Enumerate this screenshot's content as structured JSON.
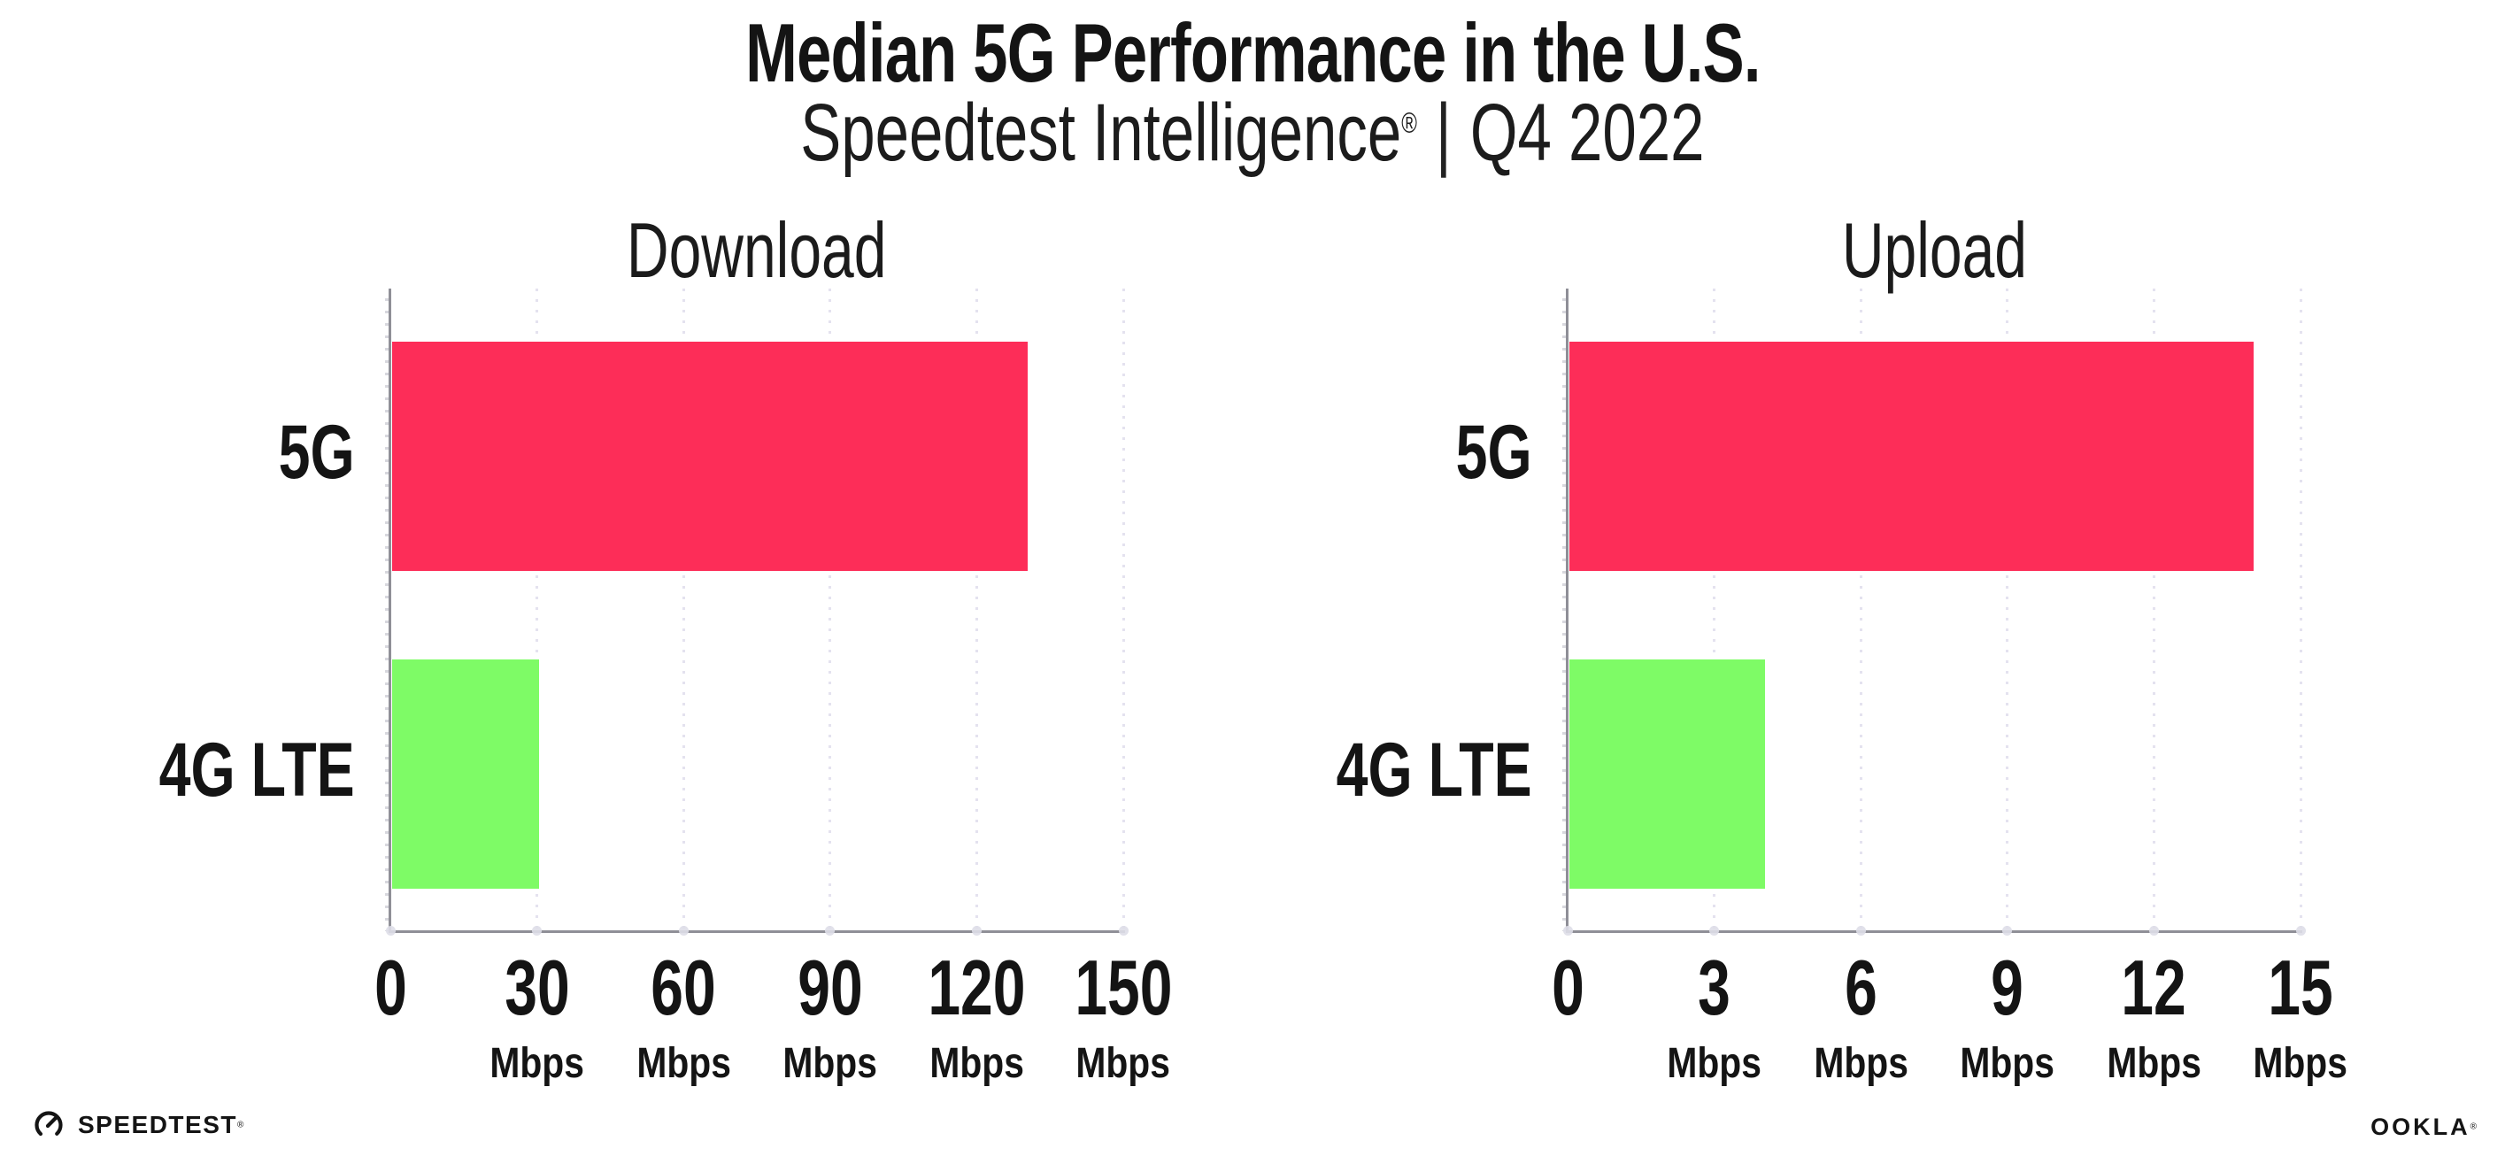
{
  "header": {
    "title": "Median 5G Performance in the U.S.",
    "subtitle": {
      "brand": "Speedtest Intelligence",
      "registered": "®",
      "divider": "|",
      "period": "Q4 2022"
    }
  },
  "colors": {
    "bar_5g_red": "#FD2D58",
    "bar_4g_green": "#7EFB66",
    "axis_gray": "#8F8F97",
    "gridline_gray": "#E4E2EF",
    "tick_dot_gray": "#DEDEE8",
    "text_black": "#141414"
  },
  "chart_data": [
    {
      "type": "bar",
      "orientation": "horizontal",
      "title": "Download",
      "categories": [
        "5G",
        "4G LTE"
      ],
      "values": [
        130,
        30
      ],
      "unit": "Mbps",
      "xlim": [
        0,
        150
      ],
      "xticks": [
        0,
        30,
        60,
        90,
        120,
        150
      ],
      "tick_unit_label": "Mbps",
      "grid": "vertical-dotted",
      "legend": "none",
      "bar_colors": [
        "#FD2D58",
        "#7EFB66"
      ]
    },
    {
      "type": "bar",
      "orientation": "horizontal",
      "title": "Upload",
      "categories": [
        "5G",
        "4G LTE"
      ],
      "values": [
        14,
        4
      ],
      "unit": "Mbps",
      "xlim": [
        0,
        15
      ],
      "xticks": [
        0,
        3,
        6,
        9,
        12,
        15
      ],
      "tick_unit_label": "Mbps",
      "grid": "vertical-dotted",
      "legend": "none",
      "bar_colors": [
        "#FD2D58",
        "#7EFB66"
      ]
    }
  ],
  "footer": {
    "speedtest_label": "SPEEDTEST",
    "speedtest_mark": "®",
    "ookla_label": "OOKLA",
    "ookla_mark": "®"
  }
}
